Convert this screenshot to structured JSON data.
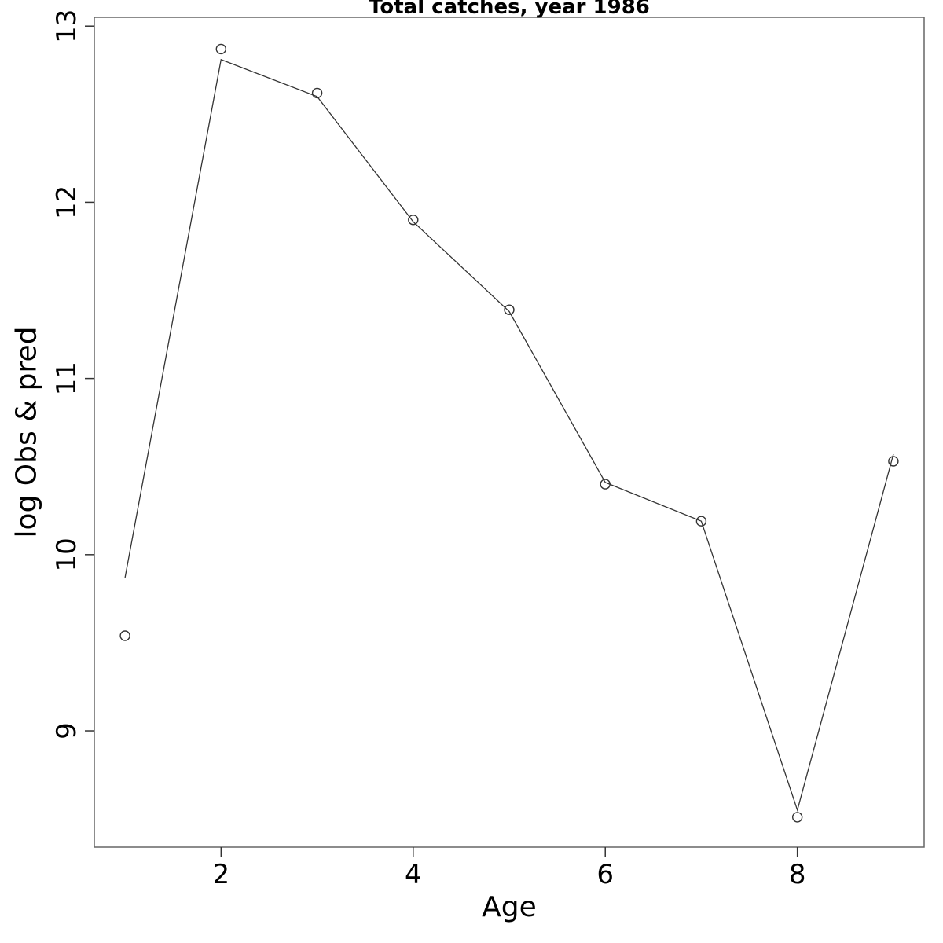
{
  "chart_data": {
    "type": "line",
    "title": "Total catches, year 1986",
    "xlabel": "Age",
    "ylabel": "log Obs & pred",
    "x": [
      1,
      2,
      3,
      4,
      5,
      6,
      7,
      8,
      9
    ],
    "series": [
      {
        "name": "predicted-line",
        "style": "line",
        "values": [
          9.87,
          12.81,
          12.6,
          11.89,
          11.38,
          10.41,
          10.19,
          8.55,
          10.57
        ]
      },
      {
        "name": "observed-points",
        "style": "open-circle-points",
        "values": [
          9.54,
          12.87,
          12.62,
          11.9,
          11.39,
          10.4,
          10.19,
          8.51,
          10.53
        ]
      }
    ],
    "x_ticks": [
      2,
      4,
      6,
      8
    ],
    "y_ticks": [
      9,
      10,
      11,
      12,
      13
    ],
    "xlim": [
      0.68,
      9.32
    ],
    "ylim": [
      8.34,
      13.05
    ],
    "grid": false,
    "legend_position": "none",
    "colors": {
      "line": "#333333",
      "marker": "#333333",
      "axis": "#666666",
      "tick": "#333333",
      "text": "#000000",
      "background": "#ffffff"
    }
  }
}
